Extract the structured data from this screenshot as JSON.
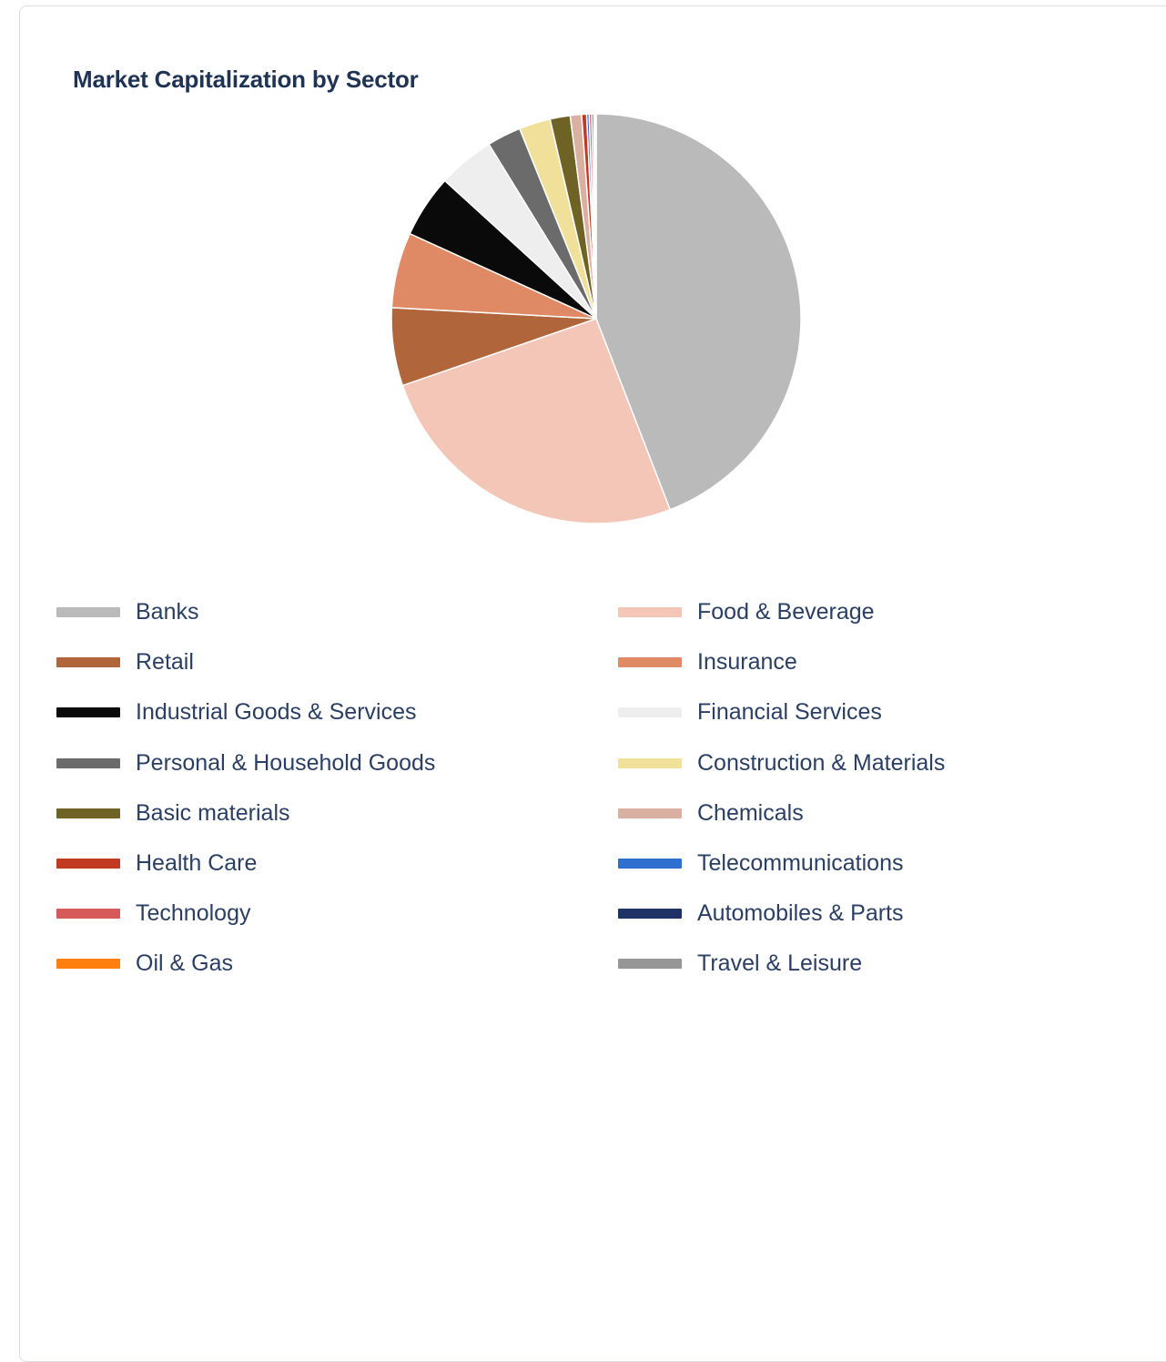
{
  "chart_data": {
    "type": "pie",
    "title": "Market Capitalization by Sector",
    "legend_position": "bottom",
    "slices": [
      {
        "label": "Banks",
        "value": 44.5,
        "color": "#bababa"
      },
      {
        "label": "Food & Beverage",
        "value": 25.8,
        "color": "#f3c6b7"
      },
      {
        "label": "Retail",
        "value": 6.2,
        "color": "#b0653a"
      },
      {
        "label": "Insurance",
        "value": 6.0,
        "color": "#e08a65"
      },
      {
        "label": "Industrial Goods & Services",
        "value": 5.0,
        "color": "#0a0a0a"
      },
      {
        "label": "Financial Services",
        "value": 4.5,
        "color": "#eeeeee"
      },
      {
        "label": "Personal & Household Goods",
        "value": 2.7,
        "color": "#6b6b6b"
      },
      {
        "label": "Construction & Materials",
        "value": 2.5,
        "color": "#f1e09a"
      },
      {
        "label": "Basic materials",
        "value": 1.6,
        "color": "#6e6324"
      },
      {
        "label": "Chemicals",
        "value": 0.9,
        "color": "#d9b0a2"
      },
      {
        "label": "Health Care",
        "value": 0.4,
        "color": "#c23a22"
      },
      {
        "label": "Telecommunications",
        "value": 0.2,
        "color": "#2f6fd0"
      },
      {
        "label": "Technology",
        "value": 0.2,
        "color": "#d65a5a"
      },
      {
        "label": "Automobiles & Parts",
        "value": 0.15,
        "color": "#1f3366"
      },
      {
        "label": "Oil & Gas",
        "value": 0.1,
        "color": "#ff7f0e"
      },
      {
        "label": "Travel & Leisure",
        "value": 0.1,
        "color": "#969696"
      }
    ]
  }
}
